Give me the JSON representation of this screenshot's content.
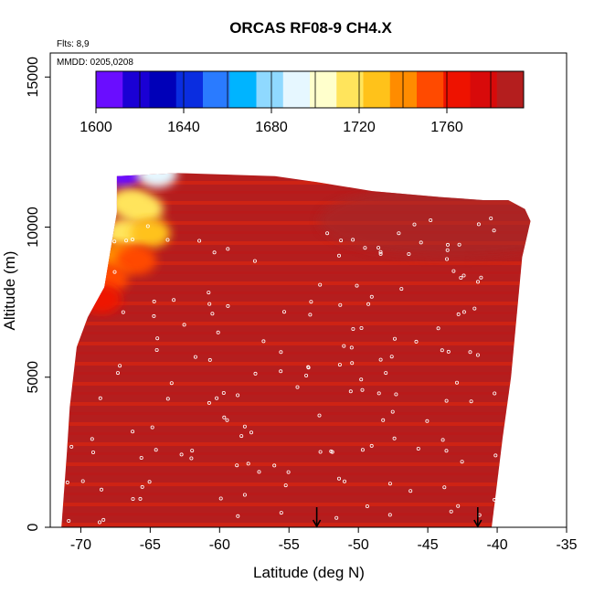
{
  "chart_data": {
    "type": "heatmap",
    "title": "ORCAS RF08-9 CH4.X",
    "xlabel": "Latitude (deg N)",
    "ylabel": "Altitude (m)",
    "flights_label": "Flts: 8,9",
    "dates_label": "MMDD: 0205,0208",
    "xlim": [
      -72.2,
      -35
    ],
    "ylim": [
      0,
      15800
    ],
    "x_ticks": [
      -70,
      -65,
      -60,
      -55,
      -50,
      -45,
      -40,
      -35
    ],
    "y_ticks": [
      0,
      5000,
      10000,
      15000
    ],
    "colorbar": {
      "range": [
        1600,
        1795
      ],
      "tick_values": [
        1600,
        1640,
        1680,
        1720,
        1760
      ],
      "colors": [
        "#6a0dff",
        "#1a00d4",
        "#0000b8",
        "#0a2de0",
        "#2a7bff",
        "#00b4ff",
        "#8fd9ff",
        "#e6f7ff",
        "#ffffcc",
        "#ffe45c",
        "#ffc21a",
        "#ff8c00",
        "#ff4a00",
        "#ee1200",
        "#d80a0a",
        "#b41e1e"
      ]
    },
    "field": {
      "background_value": 1785,
      "outline_lat": [
        -71.4,
        -71.0,
        -70.8,
        -70.3,
        -69.5,
        -68.3,
        -67.4,
        -67.4,
        -63,
        -56,
        -53,
        -49,
        -44,
        -41,
        -39.2,
        -38.0,
        -37.6,
        -38.2,
        -38.6,
        -39.0,
        -39.6,
        -40.0,
        -40.4
      ],
      "outline_alt": [
        0,
        2500,
        4000,
        6000,
        7000,
        8000,
        10500,
        11700,
        11800,
        11700,
        11500,
        11200,
        11000,
        10900,
        10900,
        10600,
        10200,
        9000,
        7000,
        5000,
        3000,
        1500,
        0
      ],
      "plume": [
        {
          "lat": -67.0,
          "alt": 11800,
          "value": 1605
        },
        {
          "lat": -64.5,
          "alt": 11800,
          "value": 1690
        },
        {
          "lat": -66.5,
          "alt": 10800,
          "value": 1715
        },
        {
          "lat": -65.5,
          "alt": 10600,
          "value": 1710
        },
        {
          "lat": -66.8,
          "alt": 9800,
          "value": 1715
        },
        {
          "lat": -65.0,
          "alt": 9800,
          "value": 1730
        },
        {
          "lat": -67.3,
          "alt": 9000,
          "value": 1740
        },
        {
          "lat": -66.0,
          "alt": 8900,
          "value": 1750
        },
        {
          "lat": -68.0,
          "alt": 8300,
          "value": 1755
        },
        {
          "lat": -68.5,
          "alt": 7600,
          "value": 1765
        }
      ]
    },
    "markers_lat": [
      -53,
      -41.4
    ]
  }
}
